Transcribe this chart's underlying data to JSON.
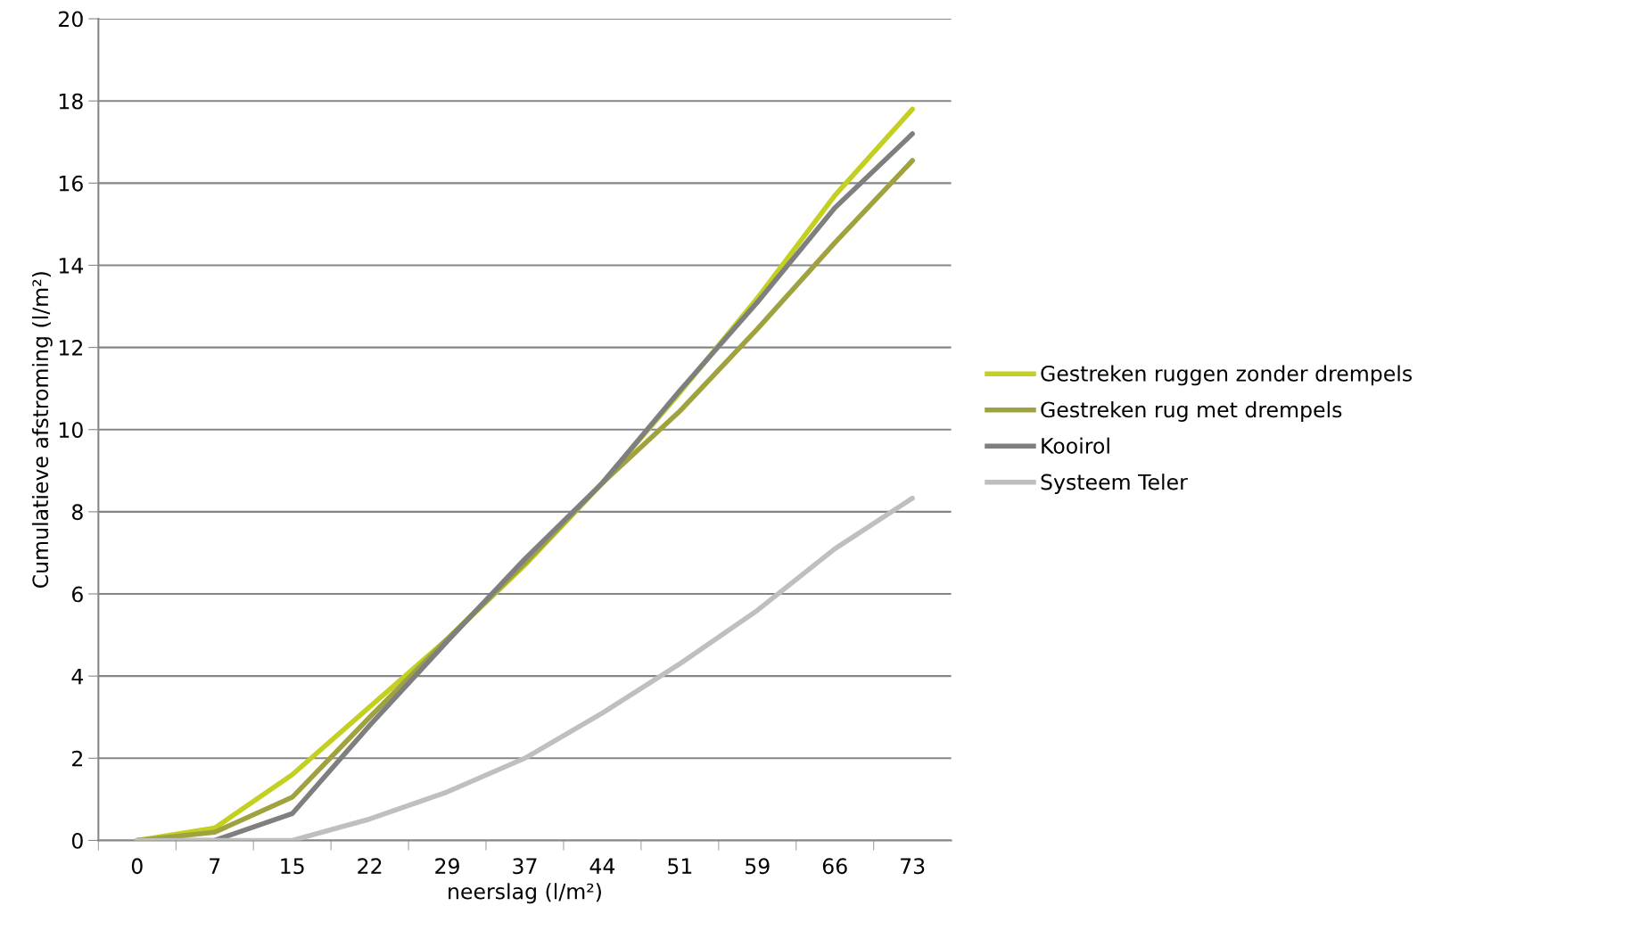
{
  "chart_data": {
    "type": "line",
    "xlabel": "neerslag (l/m²)",
    "ylabel": "Cumulatieve afstroming (l/m²)",
    "categories": [
      "0",
      "7",
      "15",
      "22",
      "29",
      "37",
      "44",
      "51",
      "59",
      "66",
      "73"
    ],
    "series": [
      {
        "name": "Gestreken ruggen zonder drempels",
        "color": "#c3cf21",
        "values": [
          0,
          0.3,
          1.6,
          3.25,
          4.9,
          6.7,
          8.7,
          10.9,
          13.2,
          15.7,
          17.8
        ]
      },
      {
        "name": "Gestreken rug met drempels",
        "color": "#9ea33f",
        "values": [
          0,
          0.2,
          1.05,
          3.0,
          4.9,
          6.75,
          8.7,
          10.45,
          12.45,
          14.55,
          16.55
        ]
      },
      {
        "name": "Kooirol",
        "color": "#7f7f7f",
        "values": [
          0,
          0,
          0.65,
          2.8,
          4.85,
          6.85,
          8.7,
          10.95,
          13.1,
          15.4,
          17.2
        ]
      },
      {
        "name": "Systeem Teler",
        "color": "#bfbfbf",
        "values": [
          0,
          0,
          0,
          0.52,
          1.18,
          2.0,
          3.1,
          4.3,
          5.6,
          7.1,
          8.33
        ]
      }
    ],
    "ylim": [
      0,
      20
    ],
    "yticks": [
      0,
      2,
      4,
      6,
      8,
      10,
      12,
      14,
      16,
      18,
      20
    ],
    "grid": "y",
    "legend": "right",
    "marker": "none",
    "line_style": "solid"
  }
}
